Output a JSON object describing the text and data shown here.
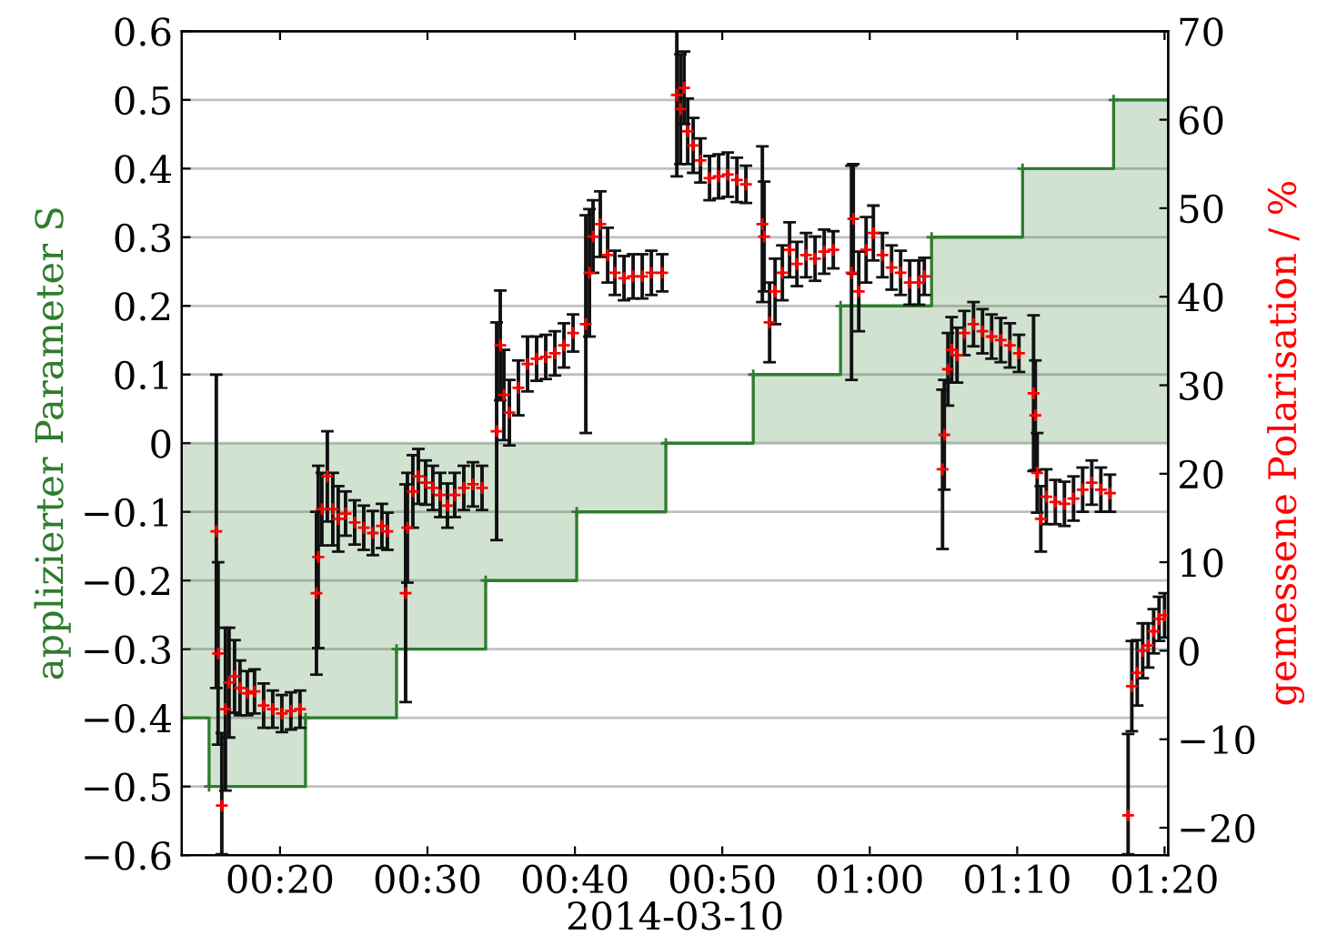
{
  "chart_data": {
    "type": "scatter",
    "xlabel": "2014-03-10",
    "ylabel": "applizierter Parameter S",
    "y2label": "gemessene Polarisation / %",
    "xlim": [
      0.2222,
      1.3374
    ],
    "xticks": [
      {
        "value": 0.3333,
        "label": "00:20"
      },
      {
        "value": 0.5,
        "label": "00:30"
      },
      {
        "value": 0.6667,
        "label": "00:40"
      },
      {
        "value": 0.8333,
        "label": "00:50"
      },
      {
        "value": 1.0,
        "label": "01:00"
      },
      {
        "value": 1.1667,
        "label": "01:10"
      },
      {
        "value": 1.3333,
        "label": "01:20"
      }
    ],
    "ylim": [
      -0.6,
      0.6
    ],
    "yticks": [
      {
        "value": -0.6,
        "label": "−0.6"
      },
      {
        "value": -0.5,
        "label": "−0.5"
      },
      {
        "value": -0.4,
        "label": "−0.4"
      },
      {
        "value": -0.3,
        "label": "−0.3"
      },
      {
        "value": -0.2,
        "label": "−0.2"
      },
      {
        "value": -0.1,
        "label": "−0.1"
      },
      0,
      0.1,
      0.2,
      0.3,
      0.4,
      0.5,
      0.6
    ],
    "y2lim": [
      -23.1,
      70
    ],
    "y2ticks": [
      {
        "value": -20,
        "label": "−20"
      },
      {
        "value": -10,
        "label": "−10"
      },
      0,
      10,
      20,
      30,
      40,
      50,
      60,
      70
    ],
    "grid": "y",
    "series": [
      {
        "type": "step",
        "color": "#2e7d2e",
        "marker": "cross",
        "x": [
          0.2222,
          0.2531,
          0.3621,
          0.465,
          0.5658,
          0.6687,
          0.7695,
          0.8683,
          0.967,
          1.0699,
          1.1728,
          1.2757,
          1.3374
        ],
        "values": [
          -0.4,
          -0.5,
          -0.4,
          -0.3,
          -0.2,
          -0.1,
          0,
          0.1,
          0.2,
          0.3,
          0.4,
          0.5,
          0.5
        ]
      },
      {
        "axis": "y2",
        "color": "#ff0000",
        "marker": "cross",
        "x": [
          0.2613,
          0.2633,
          0.2675,
          0.2716,
          0.2757,
          0.2819,
          0.288,
          0.2963,
          0.3045,
          0.3148,
          0.3251,
          0.3354,
          0.3456,
          0.3559,
          0.3745,
          0.3765,
          0.3806,
          0.3868,
          0.393,
          0.3991,
          0.4074,
          0.4177,
          0.428,
          0.4382,
          0.4485,
          0.4547,
          0.4753,
          0.4773,
          0.4835,
          0.4897,
          0.4979,
          0.5061,
          0.5144,
          0.5226,
          0.5308,
          0.5411,
          0.5514,
          0.5617,
          0.5782,
          0.5823,
          0.5864,
          0.5926,
          0.6028,
          0.6131,
          0.6234,
          0.6337,
          0.644,
          0.6543,
          0.6646,
          0.679,
          0.6831,
          0.6872,
          0.6954,
          0.7037,
          0.7119,
          0.7222,
          0.7325,
          0.7428,
          0.7531,
          0.7654,
          0.7819,
          0.786,
          0.7901,
          0.7942,
          0.8004,
          0.8086,
          0.8189,
          0.8292,
          0.8395,
          0.8498,
          0.86,
          0.8786,
          0.8806,
          0.8868,
          0.893,
          0.9012,
          0.9094,
          0.9177,
          0.928,
          0.9382,
          0.9485,
          0.9588,
          0.9794,
          0.9814,
          0.9876,
          0.9959,
          1.0041,
          1.0144,
          1.0247,
          1.0349,
          1.0452,
          1.0555,
          1.0617,
          1.0823,
          1.0843,
          1.0884,
          1.0926,
          1.0987,
          1.107,
          1.1173,
          1.1275,
          1.1378,
          1.1481,
          1.1584,
          1.1687,
          1.1852,
          1.1872,
          1.1893,
          1.1934,
          1.1996,
          1.2098,
          1.2201,
          1.2304,
          1.2407,
          1.251,
          1.2613,
          1.2716,
          1.2921,
          1.2963,
          1.3024,
          1.3086,
          1.3148,
          1.321,
          1.3271,
          1.3333
        ],
        "values": [
          13.5,
          -0.3,
          -17.5,
          -6.6,
          -3.6,
          -2.9,
          -4.2,
          -4.8,
          -4.6,
          -6.2,
          -6.6,
          -7.1,
          -6.8,
          -6.6,
          6.5,
          10.6,
          16.0,
          19.7,
          16.0,
          14.9,
          15.5,
          14.5,
          13.9,
          13.3,
          14.1,
          13.5,
          6.5,
          13.9,
          18.0,
          19.7,
          19.0,
          18.4,
          17.6,
          16.4,
          17.6,
          18.4,
          18.8,
          18.4,
          24.8,
          34.5,
          28.9,
          26.9,
          29.7,
          32.4,
          33.0,
          33.2,
          33.6,
          34.5,
          35.9,
          36.9,
          42.7,
          46.8,
          48.2,
          44.7,
          42.7,
          42.1,
          42.3,
          42.3,
          42.7,
          42.7,
          62.8,
          61.2,
          63.6,
          58.7,
          57.1,
          55.4,
          53.4,
          53.6,
          53.8,
          53.2,
          52.7,
          48.2,
          46.8,
          37.1,
          40.6,
          42.7,
          45.3,
          43.7,
          44.7,
          44.3,
          45.1,
          45.3,
          42.7,
          48.8,
          40.6,
          45.3,
          47.2,
          44.7,
          43.3,
          42.7,
          41.6,
          41.6,
          42.3,
          20.5,
          24.4,
          31.8,
          34.0,
          33.4,
          35.9,
          36.9,
          36.1,
          35.5,
          35.1,
          34.5,
          33.6,
          29.1,
          26.6,
          20.1,
          14.9,
          17.4,
          16.8,
          16.6,
          17.2,
          18.2,
          19.0,
          18.2,
          17.8,
          -18.6,
          -4.0,
          -2.5,
          0.0,
          0.6,
          2.2,
          3.6,
          4.0
        ],
        "errors": [
          17.7,
          10.3,
          [
            -23.0,
            -9.3
          ],
          9.2,
          6.2,
          4.1,
          3.1,
          2.5,
          2.5,
          2.5,
          2.1,
          2.1,
          2.1,
          2.1,
          9.2,
          10.3,
          4.1,
          5.1,
          4.1,
          3.7,
          2.5,
          2.5,
          2.5,
          2.5,
          2.5,
          2.1,
          12.3,
          6.2,
          4.1,
          3.1,
          2.5,
          2.5,
          2.5,
          2.5,
          2.5,
          2.5,
          2.5,
          2.5,
          12.3,
          6.2,
          5.1,
          3.7,
          3.1,
          3.1,
          2.5,
          2.5,
          2.5,
          2.5,
          2.1,
          12.3,
          7.2,
          4.1,
          3.7,
          3.1,
          2.5,
          2.5,
          2.5,
          2.5,
          2.5,
          2.1,
          9.2,
          6.2,
          4.1,
          3.7,
          3.1,
          2.5,
          2.5,
          2.5,
          2.5,
          2.5,
          2.1,
          8.8,
          6.2,
          4.5,
          3.7,
          3.1,
          3.1,
          2.5,
          2.5,
          2.5,
          2.5,
          2.1,
          12.1,
          6.2,
          4.5,
          3.7,
          3.1,
          2.5,
          2.5,
          2.5,
          2.5,
          2.5,
          2.1,
          9.0,
          6.2,
          4.1,
          3.7,
          3.1,
          2.5,
          2.5,
          2.5,
          2.5,
          2.5,
          2.5,
          2.1,
          8.8,
          6.2,
          4.5,
          3.7,
          3.1,
          2.5,
          2.5,
          2.5,
          2.5,
          2.5,
          2.5,
          2.1,
          [
            -23.0,
            -9.4
          ],
          5.1,
          3.7,
          3.1,
          2.5,
          2.5,
          2.5,
          2.5
        ]
      }
    ]
  }
}
